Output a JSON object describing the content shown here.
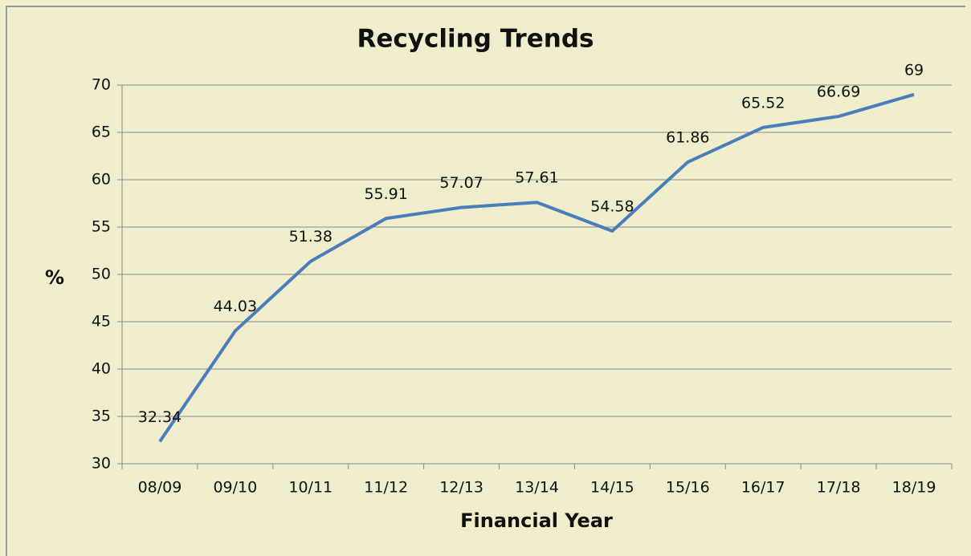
{
  "chart_data": {
    "type": "line",
    "title": "Recycling Trends",
    "x_label": "Financial Year",
    "y_label": "%",
    "categories": [
      "08/09",
      "09/10",
      "10/11",
      "11/12",
      "12/13",
      "13/14",
      "14/15",
      "15/16",
      "16/17",
      "17/18",
      "18/19"
    ],
    "values": [
      32.34,
      44.03,
      51.38,
      55.91,
      57.07,
      57.61,
      54.58,
      61.86,
      65.52,
      66.69,
      69
    ],
    "color": "#4a7ebb",
    "ylim": [
      30,
      70
    ],
    "yticks": [
      30,
      35,
      40,
      45,
      50,
      55,
      60,
      65,
      70
    ],
    "grid": true
  }
}
